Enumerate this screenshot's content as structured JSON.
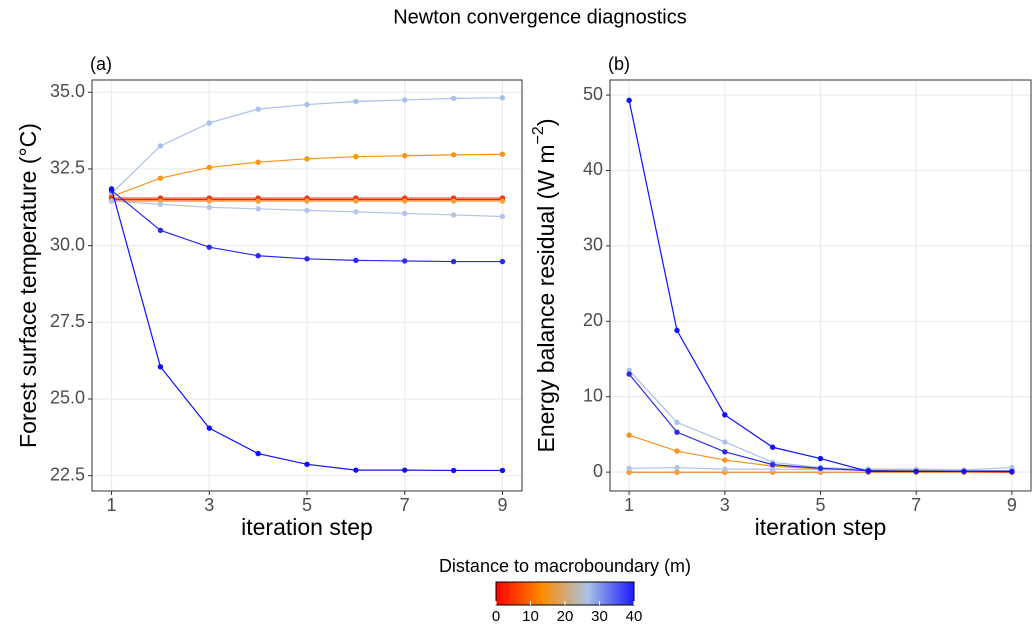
{
  "title": "Newton convergence diagnostics",
  "legend": {
    "title": "Distance to macroboundary (m)",
    "lim": [
      0,
      40
    ],
    "ticks": [
      0,
      10,
      20,
      30,
      40
    ],
    "colors": [
      "#ff0000",
      "#ff8c00",
      "#a8c3e6",
      "#1a1aff"
    ]
  },
  "chart_data": [
    {
      "type": "line",
      "panel_label": "(a)",
      "x_label": "iteration step",
      "y_label": "Forest surface temperature (°C)",
      "x": [
        1,
        2,
        3,
        4,
        5,
        6,
        7,
        8,
        9
      ],
      "xlim": [
        0.6,
        9.4
      ],
      "xticks": [
        1,
        3,
        5,
        7,
        9
      ],
      "ylim": [
        22.0,
        35.4
      ],
      "yticks": [
        22.5,
        {
          "value": 25,
          "label": "25.0"
        },
        27.5,
        {
          "value": 30,
          "label": "30.0"
        },
        32.5,
        {
          "value": 35,
          "label": "35.0"
        }
      ],
      "grid": true,
      "series": [
        {
          "color": "#a9c0ea",
          "values": [
            31.7,
            33.25,
            34.0,
            34.45,
            34.6,
            34.7,
            34.75,
            34.8,
            34.82
          ]
        },
        {
          "color": "#f7931e",
          "values": [
            31.6,
            32.2,
            32.55,
            32.72,
            32.83,
            32.9,
            32.93,
            32.96,
            32.98
          ]
        },
        {
          "color": "#ff1a00",
          "values": [
            31.5,
            31.5,
            31.5,
            31.5,
            31.5,
            31.5,
            31.5,
            31.5,
            31.5
          ]
        },
        {
          "color": "#e83a10",
          "values": [
            31.55,
            31.55,
            31.55,
            31.55,
            31.55,
            31.55,
            31.55,
            31.55,
            31.55
          ]
        },
        {
          "color": "#f9a03c",
          "values": [
            31.45,
            31.45,
            31.45,
            31.45,
            31.45,
            31.45,
            31.45,
            31.45,
            31.45
          ]
        },
        {
          "color": "#b3c4e6",
          "values": [
            31.45,
            31.35,
            31.25,
            31.2,
            31.15,
            31.1,
            31.05,
            31.0,
            30.95
          ]
        },
        {
          "color": "#2b2bee",
          "values": [
            31.8,
            30.5,
            29.95,
            29.67,
            29.57,
            29.52,
            29.5,
            29.48,
            29.48
          ]
        },
        {
          "color": "#1010ff",
          "values": [
            31.85,
            26.05,
            24.05,
            23.22,
            22.87,
            22.68,
            22.68,
            22.67,
            22.67
          ]
        }
      ]
    },
    {
      "type": "line",
      "panel_label": "(b)",
      "x_label": "iteration step",
      "y_label": {
        "text": "Energy balance residual (W m",
        "superscript": "−2",
        "suffix": ")"
      },
      "x": [
        1,
        2,
        3,
        4,
        5,
        6,
        7,
        8,
        9
      ],
      "xlim": [
        0.6,
        9.4
      ],
      "xticks": [
        1,
        3,
        5,
        7,
        9
      ],
      "ylim": [
        -2.5,
        52
      ],
      "yticks": [
        0,
        10,
        20,
        30,
        40,
        50
      ],
      "grid": true,
      "series": [
        {
          "color": "#a9c0ea",
          "values": [
            13.5,
            6.6,
            4.0,
            1.3,
            0.6,
            0.4,
            0.3,
            0.2,
            0.2
          ]
        },
        {
          "color": "#f7931e",
          "values": [
            4.9,
            2.8,
            1.6,
            0.8,
            0.4,
            0.3,
            0.2,
            0.1,
            0.1
          ]
        },
        {
          "color": "#ff1a00",
          "values": [
            0,
            0,
            0,
            0,
            0,
            0,
            0,
            0,
            0
          ]
        },
        {
          "color": "#e83a10",
          "values": [
            0,
            0,
            0,
            0,
            0,
            0,
            0,
            0,
            0
          ]
        },
        {
          "color": "#f9a03c",
          "values": [
            0,
            0,
            0,
            0,
            0,
            0,
            0,
            0,
            0.1
          ]
        },
        {
          "color": "#b3c4e6",
          "values": [
            0.5,
            0.6,
            0.4,
            0.4,
            0.3,
            0.4,
            0.4,
            0.3,
            0.6
          ]
        },
        {
          "color": "#2b2bee",
          "values": [
            13.0,
            5.3,
            2.7,
            1.0,
            0.5,
            0.2,
            0.1,
            0.1,
            0.1
          ]
        },
        {
          "color": "#1010ff",
          "values": [
            49.3,
            18.8,
            7.6,
            3.3,
            1.8,
            0.1,
            0.1,
            0.1,
            0.1
          ]
        }
      ]
    }
  ]
}
